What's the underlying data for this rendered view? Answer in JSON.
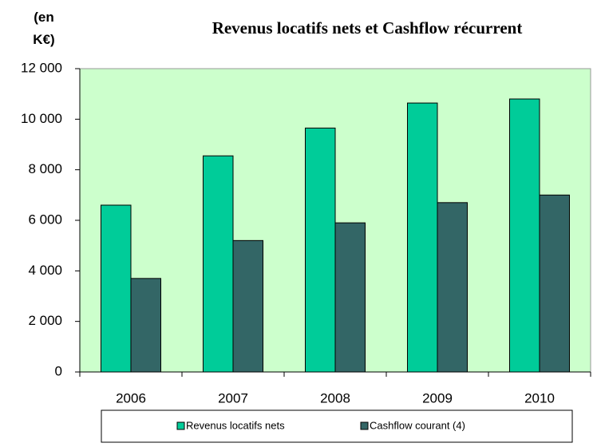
{
  "chart_data": {
    "type": "bar",
    "title": "Revenus locatifs nets et Cashflow récurrent",
    "y_label": "(en K€)",
    "categories": [
      "2006",
      "2007",
      "2008",
      "2009",
      "2010"
    ],
    "series": [
      {
        "name": "Revenus locatifs nets",
        "color": "#00cc99",
        "values": [
          6600,
          8550,
          9650,
          10640,
          10800
        ]
      },
      {
        "name": "Cashflow courant (4)",
        "color": "#336666",
        "values": [
          3700,
          5200,
          5900,
          6700,
          7000
        ]
      }
    ],
    "ylim": [
      0,
      12000
    ],
    "yticks": [
      0,
      {
        "value": 2000,
        "label": "2 000"
      },
      {
        "value": 4000,
        "label": "4 000"
      },
      {
        "value": 6000,
        "label": "6 000"
      },
      {
        "value": 8000,
        "label": "8 000"
      },
      {
        "value": 10000,
        "label": "10 000"
      },
      {
        "value": 12000,
        "label": "12 000"
      }
    ],
    "plot_background": "#ccffcc",
    "legend": "bottom"
  }
}
